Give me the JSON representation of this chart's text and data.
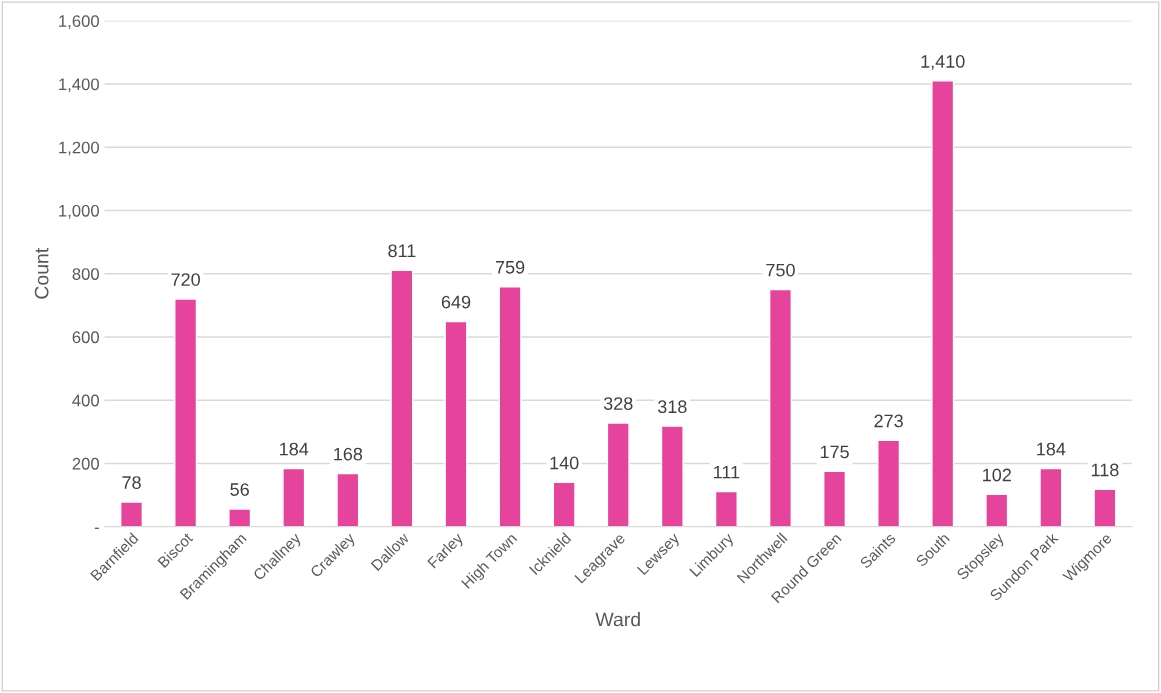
{
  "chart_data": {
    "type": "bar",
    "xlabel": "Ward",
    "ylabel": "Count",
    "categories": [
      "Barnfield",
      "Biscot",
      "Bramingham",
      "Challney",
      "Crawley",
      "Dallow",
      "Farley",
      "High Town",
      "Icknield",
      "Leagrave",
      "Lewsey",
      "Limbury",
      "Northwell",
      "Round Green",
      "Saints",
      "South",
      "Stopsley",
      "Sundon Park",
      "Wigmore"
    ],
    "values": [
      78,
      720,
      56,
      184,
      168,
      811,
      649,
      759,
      140,
      328,
      318,
      111,
      750,
      175,
      273,
      1410,
      102,
      184,
      118
    ],
    "value_labels": [
      "78",
      "720",
      "56",
      "184",
      "168",
      "811",
      "649",
      "759",
      "140",
      "328",
      "318",
      "111",
      "750",
      "175",
      "273",
      "1,410",
      "102",
      "184",
      "118"
    ],
    "color": "#e6449c",
    "ylim": [
      0,
      1600
    ],
    "yticks": [
      {
        "value": 0,
        "label": "-"
      },
      200,
      400,
      600,
      800,
      {
        "value": 1000,
        "label": "1,000"
      },
      {
        "value": 1200,
        "label": "1,200"
      },
      {
        "value": 1400,
        "label": "1,400"
      },
      {
        "value": 1600,
        "label": "1,600"
      }
    ],
    "grid": "y"
  }
}
